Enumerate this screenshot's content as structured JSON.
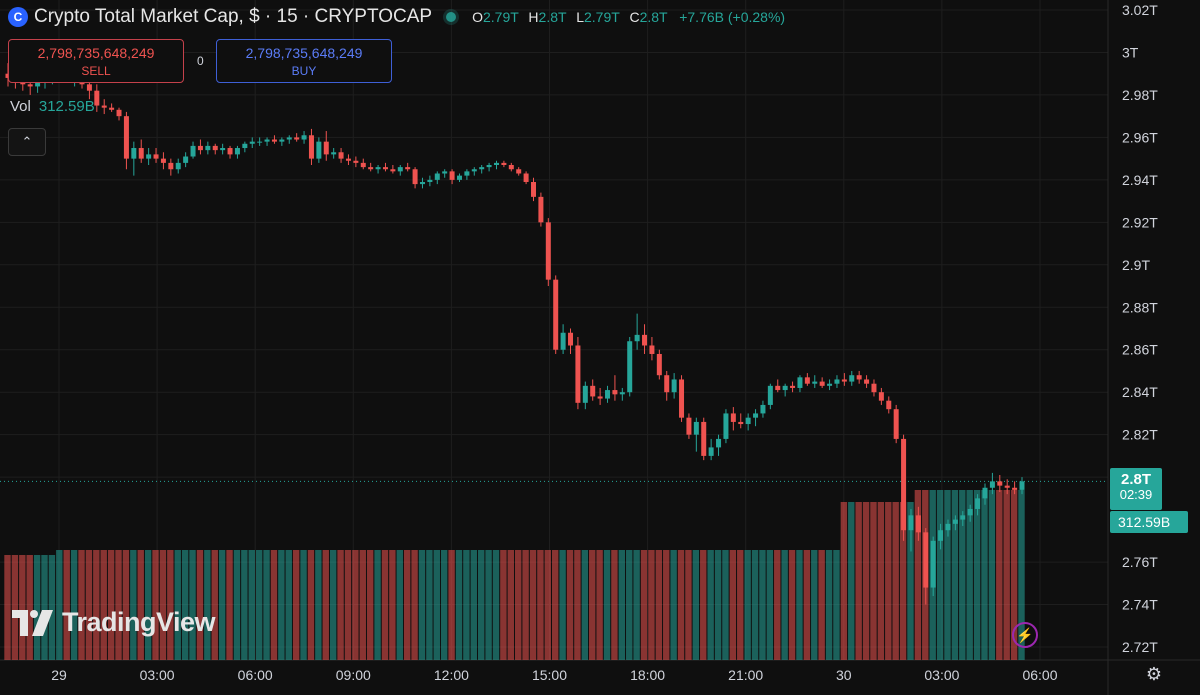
{
  "header": {
    "symbol_icon": "C",
    "title": "Crypto Total Market Cap, $ · 15 · CRYPTOCAP",
    "ohlc": {
      "o_label": "O",
      "o": "2.79T",
      "h_label": "H",
      "h": "2.8T",
      "l_label": "L",
      "l": "2.79T",
      "c_label": "C",
      "c": "2.8T",
      "change": "+7.76B (+0.28%)"
    }
  },
  "trade": {
    "sell_value": "2,798,735,648,249",
    "sell_label": "SELL",
    "buy_value": "2,798,735,648,249",
    "buy_label": "BUY",
    "spread": "0"
  },
  "volume": {
    "label": "Vol",
    "value": "312.59B"
  },
  "collapse_icon": "chevron-up-icon",
  "last_price": {
    "price": "2.8T",
    "countdown": "02:39",
    "volume": "312.59B"
  },
  "branding": "TradingView",
  "colors": {
    "up": "#26a69a",
    "down": "#ef5350",
    "background": "#0f0f0f",
    "grid": "#1e1e1e",
    "text": "#d1d4dc"
  },
  "chart_data": {
    "type": "candlestick",
    "y_ticks": [
      "3.02T",
      "3T",
      "2.98T",
      "2.96T",
      "2.94T",
      "2.92T",
      "2.9T",
      "2.88T",
      "2.86T",
      "2.84T",
      "2.82T",
      "2.8T",
      "2.76T",
      "2.74T",
      "2.72T"
    ],
    "ylim": [
      2.72,
      3.02
    ],
    "x_ticks": [
      "29",
      "03:00",
      "06:00",
      "09:00",
      "12:00",
      "15:00",
      "18:00",
      "21:00",
      "30",
      "03:00",
      "06:00"
    ],
    "x_range_hours": [
      0,
      30
    ],
    "ohlc": [
      [
        2.99,
        2.995,
        2.984,
        2.988
      ],
      [
        2.988,
        2.993,
        2.983,
        2.987
      ],
      [
        2.987,
        2.991,
        2.982,
        2.985
      ],
      [
        2.985,
        2.989,
        2.98,
        2.984
      ],
      [
        2.984,
        2.99,
        2.981,
        2.987
      ],
      [
        2.987,
        2.992,
        2.983,
        2.989
      ],
      [
        2.989,
        2.994,
        2.985,
        2.991
      ],
      [
        2.991,
        2.996,
        2.987,
        2.993
      ],
      [
        2.993,
        2.997,
        2.986,
        2.99
      ],
      [
        2.99,
        2.994,
        2.984,
        2.992
      ],
      [
        2.992,
        2.995,
        2.983,
        2.985
      ],
      [
        2.985,
        2.989,
        2.978,
        2.982
      ],
      [
        2.982,
        2.985,
        2.972,
        2.975
      ],
      [
        2.975,
        2.978,
        2.971,
        2.974
      ],
      [
        2.974,
        2.976,
        2.972,
        2.973
      ],
      [
        2.973,
        2.974,
        2.968,
        2.97
      ],
      [
        2.97,
        2.972,
        2.945,
        2.95
      ],
      [
        2.95,
        2.958,
        2.942,
        2.955
      ],
      [
        2.955,
        2.959,
        2.948,
        2.95
      ],
      [
        2.95,
        2.955,
        2.947,
        2.952
      ],
      [
        2.952,
        2.955,
        2.948,
        2.95
      ],
      [
        2.95,
        2.953,
        2.945,
        2.948
      ],
      [
        2.948,
        2.95,
        2.942,
        2.945
      ],
      [
        2.945,
        2.95,
        2.943,
        2.948
      ],
      [
        2.948,
        2.953,
        2.946,
        2.951
      ],
      [
        2.951,
        2.958,
        2.95,
        2.956
      ],
      [
        2.956,
        2.959,
        2.952,
        2.954
      ],
      [
        2.954,
        2.958,
        2.952,
        2.956
      ],
      [
        2.956,
        2.957,
        2.952,
        2.954
      ],
      [
        2.954,
        2.957,
        2.952,
        2.955
      ],
      [
        2.955,
        2.956,
        2.95,
        2.952
      ],
      [
        2.952,
        2.956,
        2.95,
        2.955
      ],
      [
        2.955,
        2.958,
        2.953,
        2.957
      ],
      [
        2.957,
        2.96,
        2.955,
        2.958
      ],
      [
        2.958,
        2.96,
        2.956,
        2.958
      ],
      [
        2.958,
        2.96,
        2.956,
        2.959
      ],
      [
        2.959,
        2.961,
        2.957,
        2.958
      ],
      [
        2.958,
        2.96,
        2.956,
        2.959
      ],
      [
        2.959,
        2.961,
        2.957,
        2.96
      ],
      [
        2.96,
        2.962,
        2.958,
        2.959
      ],
      [
        2.959,
        2.963,
        2.957,
        2.961
      ],
      [
        2.961,
        2.964,
        2.947,
        2.95
      ],
      [
        2.95,
        2.96,
        2.948,
        2.958
      ],
      [
        2.958,
        2.963,
        2.949,
        2.952
      ],
      [
        2.952,
        2.955,
        2.95,
        2.953
      ],
      [
        2.953,
        2.955,
        2.948,
        2.95
      ],
      [
        2.95,
        2.952,
        2.947,
        2.949
      ],
      [
        2.949,
        2.951,
        2.946,
        2.948
      ],
      [
        2.948,
        2.95,
        2.945,
        2.946
      ],
      [
        2.946,
        2.948,
        2.944,
        2.945
      ],
      [
        2.945,
        2.947,
        2.943,
        2.946
      ],
      [
        2.946,
        2.948,
        2.944,
        2.945
      ],
      [
        2.945,
        2.947,
        2.943,
        2.944
      ],
      [
        2.944,
        2.947,
        2.942,
        2.946
      ],
      [
        2.946,
        2.948,
        2.944,
        2.945
      ],
      [
        2.945,
        2.946,
        2.936,
        2.938
      ],
      [
        2.938,
        2.941,
        2.936,
        2.939
      ],
      [
        2.939,
        2.942,
        2.937,
        2.94
      ],
      [
        2.94,
        2.944,
        2.938,
        2.943
      ],
      [
        2.943,
        2.945,
        2.941,
        2.944
      ],
      [
        2.944,
        2.945,
        2.938,
        2.94
      ],
      [
        2.94,
        2.943,
        2.939,
        2.942
      ],
      [
        2.942,
        2.945,
        2.94,
        2.944
      ],
      [
        2.944,
        2.946,
        2.942,
        2.945
      ],
      [
        2.945,
        2.947,
        2.943,
        2.946
      ],
      [
        2.946,
        2.948,
        2.944,
        2.947
      ],
      [
        2.947,
        2.949,
        2.945,
        2.948
      ],
      [
        2.948,
        2.949,
        2.946,
        2.947
      ],
      [
        2.947,
        2.948,
        2.944,
        2.945
      ],
      [
        2.945,
        2.946,
        2.942,
        2.943
      ],
      [
        2.943,
        2.944,
        2.938,
        2.939
      ],
      [
        2.939,
        2.941,
        2.93,
        2.932
      ],
      [
        2.932,
        2.934,
        2.918,
        2.92
      ],
      [
        2.92,
        2.922,
        2.89,
        2.893
      ],
      [
        2.893,
        2.895,
        2.858,
        2.86
      ],
      [
        2.86,
        2.872,
        2.858,
        2.868
      ],
      [
        2.868,
        2.87,
        2.858,
        2.862
      ],
      [
        2.862,
        2.866,
        2.832,
        2.835
      ],
      [
        2.835,
        2.845,
        2.832,
        2.843
      ],
      [
        2.843,
        2.846,
        2.836,
        2.838
      ],
      [
        2.838,
        2.842,
        2.834,
        2.837
      ],
      [
        2.837,
        2.843,
        2.835,
        2.841
      ],
      [
        2.841,
        2.848,
        2.836,
        2.839
      ],
      [
        2.839,
        2.842,
        2.836,
        2.84
      ],
      [
        2.84,
        2.866,
        2.838,
        2.864
      ],
      [
        2.864,
        2.877,
        2.86,
        2.867
      ],
      [
        2.867,
        2.872,
        2.858,
        2.862
      ],
      [
        2.862,
        2.866,
        2.855,
        2.858
      ],
      [
        2.858,
        2.86,
        2.846,
        2.848
      ],
      [
        2.848,
        2.85,
        2.836,
        2.84
      ],
      [
        2.84,
        2.849,
        2.837,
        2.846
      ],
      [
        2.846,
        2.848,
        2.826,
        2.828
      ],
      [
        2.828,
        2.83,
        2.818,
        2.82
      ],
      [
        2.82,
        2.828,
        2.812,
        2.826
      ],
      [
        2.826,
        2.828,
        2.808,
        2.81
      ],
      [
        2.81,
        2.818,
        2.808,
        2.814
      ],
      [
        2.814,
        2.82,
        2.81,
        2.818
      ],
      [
        2.818,
        2.832,
        2.816,
        2.83
      ],
      [
        2.83,
        2.833,
        2.822,
        2.826
      ],
      [
        2.826,
        2.83,
        2.823,
        2.825
      ],
      [
        2.825,
        2.83,
        2.822,
        2.828
      ],
      [
        2.828,
        2.832,
        2.824,
        2.83
      ],
      [
        2.83,
        2.836,
        2.828,
        2.834
      ],
      [
        2.834,
        2.844,
        2.832,
        2.843
      ],
      [
        2.843,
        2.846,
        2.84,
        2.841
      ],
      [
        2.841,
        2.844,
        2.838,
        2.843
      ],
      [
        2.843,
        2.845,
        2.84,
        2.842
      ],
      [
        2.842,
        2.848,
        2.84,
        2.847
      ],
      [
        2.847,
        2.849,
        2.843,
        2.844
      ],
      [
        2.844,
        2.848,
        2.842,
        2.845
      ],
      [
        2.845,
        2.847,
        2.842,
        2.843
      ],
      [
        2.843,
        2.846,
        2.841,
        2.844
      ],
      [
        2.844,
        2.848,
        2.842,
        2.846
      ],
      [
        2.846,
        2.849,
        2.843,
        2.845
      ],
      [
        2.845,
        2.85,
        2.843,
        2.848
      ],
      [
        2.848,
        2.85,
        2.844,
        2.846
      ],
      [
        2.846,
        2.848,
        2.842,
        2.844
      ],
      [
        2.844,
        2.846,
        2.838,
        2.84
      ],
      [
        2.84,
        2.842,
        2.834,
        2.836
      ],
      [
        2.836,
        2.838,
        2.83,
        2.832
      ],
      [
        2.832,
        2.834,
        2.816,
        2.818
      ],
      [
        2.818,
        2.82,
        2.77,
        2.775
      ],
      [
        2.775,
        2.785,
        2.765,
        2.782
      ],
      [
        2.782,
        2.786,
        2.77,
        2.774
      ],
      [
        2.774,
        2.776,
        2.74,
        2.748
      ],
      [
        2.748,
        2.772,
        2.744,
        2.77
      ],
      [
        2.77,
        2.778,
        2.766,
        2.775
      ],
      [
        2.775,
        2.78,
        2.772,
        2.778
      ],
      [
        2.778,
        2.782,
        2.775,
        2.78
      ],
      [
        2.78,
        2.784,
        2.777,
        2.782
      ],
      [
        2.782,
        2.787,
        2.779,
        2.785
      ],
      [
        2.785,
        2.792,
        2.782,
        2.79
      ],
      [
        2.79,
        2.797,
        2.787,
        2.795
      ],
      [
        2.795,
        2.802,
        2.792,
        2.798
      ],
      [
        2.798,
        2.801,
        2.793,
        2.796
      ],
      [
        2.796,
        2.799,
        2.792,
        2.795
      ],
      [
        2.795,
        2.798,
        2.792,
        2.794
      ],
      [
        2.794,
        2.8,
        2.792,
        2.798
      ]
    ]
  }
}
